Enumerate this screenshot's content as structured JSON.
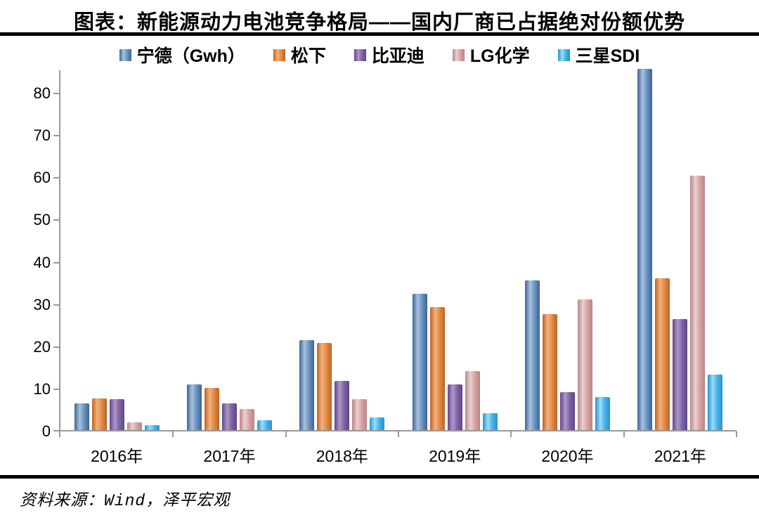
{
  "page": {
    "title": "图表：新能源动力电池竞争格局——国内厂商已占据绝对份额优势",
    "source": "资料来源：Wind，泽平宏观"
  },
  "chart_data": {
    "type": "bar",
    "title": "图表：新能源动力电池竞争格局——国内厂商已占据绝对份额优势",
    "categories": [
      "2016年",
      "2017年",
      "2018年",
      "2019年",
      "2020年",
      "2021年"
    ],
    "series": [
      {
        "name": "宁德（Gwh）",
        "color": "#4F81BD",
        "dark": "#3B6496",
        "light": "#A8C2DE",
        "mid": "#6B93C0",
        "values": [
          6.4,
          10.8,
          21.3,
          32.3,
          35.4,
          85.5
        ]
      },
      {
        "name": "松下",
        "color": "#D9773A",
        "dark": "#C06222",
        "light": "#F4B27C",
        "mid": "#E08B44",
        "values": [
          7.5,
          10.0,
          20.7,
          29.1,
          27.5,
          36.0
        ]
      },
      {
        "name": "比亚迪",
        "color": "#8064A2",
        "dark": "#5F4687",
        "light": "#AE97CA",
        "mid": "#7F63A5",
        "values": [
          7.3,
          6.4,
          11.6,
          10.8,
          9.0,
          26.3
        ]
      },
      {
        "name": "LG化学",
        "color": "#D99694",
        "dark": "#B98486",
        "light": "#EBD0D0",
        "mid": "#D6A3A2",
        "values": [
          1.8,
          5.0,
          7.4,
          14.0,
          30.9,
          60.2
        ]
      },
      {
        "name": "三星SDI",
        "color": "#4FBBEA",
        "dark": "#2893CE",
        "light": "#9BDCF9",
        "mid": "#45B2E8",
        "values": [
          1.2,
          2.3,
          3.0,
          4.0,
          7.8,
          13.2
        ]
      }
    ],
    "ylim": [
      0,
      85.5
    ],
    "yticks": [
      0,
      10,
      20,
      30,
      40,
      50,
      60,
      70,
      80
    ],
    "ylabel": "",
    "xlabel": "",
    "legend_position": "top",
    "grid": false,
    "axis_color": "#999999"
  }
}
